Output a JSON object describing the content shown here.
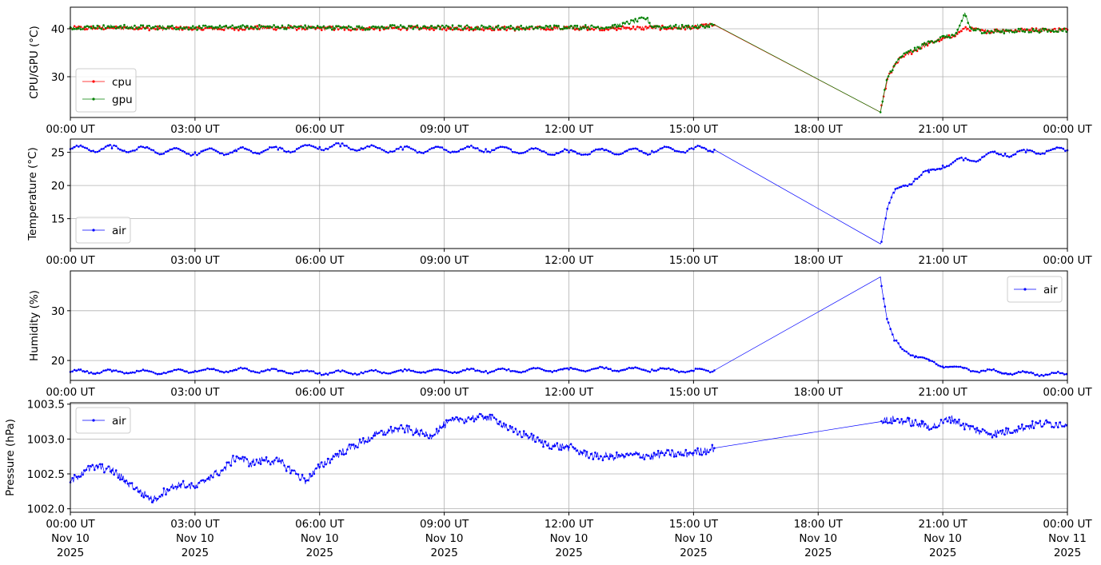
{
  "chart_data": [
    {
      "type": "line",
      "ylabel": "CPU/GPU (°C)",
      "xlim": [
        "2025-11-10 00:00",
        "2025-11-11 00:00"
      ],
      "ylim": [
        21.5,
        44.5
      ],
      "yticks": [
        30,
        40
      ],
      "grid": true,
      "legend_position": "lower-left",
      "series": [
        {
          "name": "cpu",
          "color": "#ff0000",
          "points": [
            [
              "2025-11-10 00:00",
              40.1
            ],
            [
              "2025-11-10 01:00",
              40.2
            ],
            [
              "2025-11-10 02:00",
              40.1
            ],
            [
              "2025-11-10 03:00",
              40.0
            ],
            [
              "2025-11-10 04:00",
              40.1
            ],
            [
              "2025-11-10 05:00",
              40.2
            ],
            [
              "2025-11-10 06:00",
              40.1
            ],
            [
              "2025-11-10 07:00",
              40.0
            ],
            [
              "2025-11-10 08:00",
              40.2
            ],
            [
              "2025-11-10 09:00",
              40.1
            ],
            [
              "2025-11-10 10:00",
              40.1
            ],
            [
              "2025-11-10 11:00",
              40.0
            ],
            [
              "2025-11-10 12:00",
              40.2
            ],
            [
              "2025-11-10 13:00",
              40.1
            ],
            [
              "2025-11-10 14:00",
              40.2
            ],
            [
              "2025-11-10 15:00",
              40.2
            ],
            [
              "2025-11-10 15:30",
              40.8
            ],
            [
              "2025-11-10 19:30",
              22.6
            ],
            [
              "2025-11-10 19:40",
              29.5
            ],
            [
              "2025-11-10 19:50",
              32.0
            ],
            [
              "2025-11-10 20:00",
              34.0
            ],
            [
              "2025-11-10 20:20",
              35.5
            ],
            [
              "2025-11-10 20:40",
              37.0
            ],
            [
              "2025-11-10 21:00",
              38.0
            ],
            [
              "2025-11-10 21:15",
              38.5
            ],
            [
              "2025-11-10 21:30",
              40.0
            ],
            [
              "2025-11-10 22:00",
              39.5
            ],
            [
              "2025-11-10 22:30",
              39.6
            ],
            [
              "2025-11-10 23:00",
              39.7
            ],
            [
              "2025-11-10 23:30",
              39.8
            ],
            [
              "2025-11-11 00:00",
              39.8
            ]
          ]
        },
        {
          "name": "gpu",
          "color": "#008000",
          "points": [
            [
              "2025-11-10 00:00",
              40.3
            ],
            [
              "2025-11-10 01:00",
              40.4
            ],
            [
              "2025-11-10 02:00",
              40.3
            ],
            [
              "2025-11-10 03:00",
              40.2
            ],
            [
              "2025-11-10 04:00",
              40.3
            ],
            [
              "2025-11-10 05:00",
              40.4
            ],
            [
              "2025-11-10 06:00",
              40.3
            ],
            [
              "2025-11-10 07:00",
              40.2
            ],
            [
              "2025-11-10 08:00",
              40.4
            ],
            [
              "2025-11-10 09:00",
              40.3
            ],
            [
              "2025-11-10 10:00",
              40.3
            ],
            [
              "2025-11-10 11:00",
              40.2
            ],
            [
              "2025-11-10 12:00",
              40.4
            ],
            [
              "2025-11-10 13:00",
              40.3
            ],
            [
              "2025-11-10 13:52",
              42.2
            ],
            [
              "2025-11-10 14:00",
              40.4
            ],
            [
              "2025-11-10 15:00",
              40.4
            ],
            [
              "2025-11-10 15:30",
              40.9
            ],
            [
              "2025-11-10 19:30",
              22.6
            ],
            [
              "2025-11-10 19:40",
              29.8
            ],
            [
              "2025-11-10 19:50",
              32.3
            ],
            [
              "2025-11-10 20:00",
              34.3
            ],
            [
              "2025-11-10 20:20",
              35.7
            ],
            [
              "2025-11-10 20:40",
              37.2
            ],
            [
              "2025-11-10 21:00",
              38.2
            ],
            [
              "2025-11-10 21:20",
              38.8
            ],
            [
              "2025-11-10 21:32",
              43.3
            ],
            [
              "2025-11-10 21:40",
              40.0
            ],
            [
              "2025-11-10 22:00",
              39.4
            ],
            [
              "2025-11-10 22:30",
              39.5
            ],
            [
              "2025-11-10 23:00",
              39.6
            ],
            [
              "2025-11-10 23:30",
              39.7
            ],
            [
              "2025-11-11 00:00",
              39.7
            ]
          ]
        }
      ]
    },
    {
      "type": "line",
      "ylabel": "Temperature (°C)",
      "xlim": [
        "2025-11-10 00:00",
        "2025-11-11 00:00"
      ],
      "ylim": [
        10.5,
        27.0
      ],
      "yticks": [
        15,
        20,
        25
      ],
      "grid": true,
      "legend_position": "lower-left",
      "series": [
        {
          "name": "air",
          "color": "#0000ff",
          "points": [
            [
              "2025-11-10 00:00",
              25.5
            ],
            [
              "2025-11-10 01:00",
              25.6
            ],
            [
              "2025-11-10 02:00",
              25.3
            ],
            [
              "2025-11-10 03:00",
              25.0
            ],
            [
              "2025-11-10 04:00",
              25.2
            ],
            [
              "2025-11-10 05:00",
              25.4
            ],
            [
              "2025-11-10 06:00",
              25.8
            ],
            [
              "2025-11-10 06:30",
              25.9
            ],
            [
              "2025-11-10 07:00",
              25.6
            ],
            [
              "2025-11-10 08:00",
              25.4
            ],
            [
              "2025-11-10 09:00",
              25.4
            ],
            [
              "2025-11-10 10:00",
              25.5
            ],
            [
              "2025-11-10 11:00",
              25.2
            ],
            [
              "2025-11-10 12:00",
              25.0
            ],
            [
              "2025-11-10 13:00",
              25.1
            ],
            [
              "2025-11-10 14:00",
              25.2
            ],
            [
              "2025-11-10 15:00",
              25.5
            ],
            [
              "2025-11-10 15:30",
              25.4
            ],
            [
              "2025-11-10 19:30",
              11.2
            ],
            [
              "2025-11-10 19:40",
              16.5
            ],
            [
              "2025-11-10 19:50",
              18.8
            ],
            [
              "2025-11-10 20:00",
              19.8
            ],
            [
              "2025-11-10 20:20",
              21.0
            ],
            [
              "2025-11-10 20:40",
              22.0
            ],
            [
              "2025-11-10 21:00",
              23.0
            ],
            [
              "2025-11-10 21:30",
              23.8
            ],
            [
              "2025-11-10 22:00",
              24.4
            ],
            [
              "2025-11-10 22:30",
              24.8
            ],
            [
              "2025-11-10 23:00",
              25.0
            ],
            [
              "2025-11-10 23:30",
              25.2
            ],
            [
              "2025-11-11 00:00",
              25.3
            ]
          ]
        }
      ]
    },
    {
      "type": "line",
      "ylabel": "Humidity (%)",
      "xlim": [
        "2025-11-10 00:00",
        "2025-11-11 00:00"
      ],
      "ylim": [
        16.0,
        38.0
      ],
      "yticks": [
        20,
        30
      ],
      "grid": true,
      "legend_position": "upper-right",
      "series": [
        {
          "name": "air",
          "color": "#0000ff",
          "points": [
            [
              "2025-11-10 00:00",
              17.7
            ],
            [
              "2025-11-10 01:00",
              17.8
            ],
            [
              "2025-11-10 02:00",
              17.6
            ],
            [
              "2025-11-10 03:00",
              17.9
            ],
            [
              "2025-11-10 04:00",
              18.1
            ],
            [
              "2025-11-10 05:00",
              17.9
            ],
            [
              "2025-11-10 06:00",
              17.5
            ],
            [
              "2025-11-10 07:00",
              17.6
            ],
            [
              "2025-11-10 08:00",
              17.8
            ],
            [
              "2025-11-10 09:00",
              17.9
            ],
            [
              "2025-11-10 10:00",
              17.9
            ],
            [
              "2025-11-10 11:00",
              18.0
            ],
            [
              "2025-11-10 12:00",
              18.2
            ],
            [
              "2025-11-10 13:00",
              18.3
            ],
            [
              "2025-11-10 14:00",
              18.2
            ],
            [
              "2025-11-10 15:00",
              17.9
            ],
            [
              "2025-11-10 15:30",
              18.0
            ],
            [
              "2025-11-10 19:30",
              36.8
            ],
            [
              "2025-11-10 19:35",
              32.0
            ],
            [
              "2025-11-10 19:40",
              28.0
            ],
            [
              "2025-11-10 19:50",
              24.0
            ],
            [
              "2025-11-10 20:00",
              22.5
            ],
            [
              "2025-11-10 20:20",
              21.0
            ],
            [
              "2025-11-10 20:40",
              19.8
            ],
            [
              "2025-11-10 21:00",
              19.0
            ],
            [
              "2025-11-10 21:30",
              18.3
            ],
            [
              "2025-11-10 22:00",
              17.9
            ],
            [
              "2025-11-10 22:30",
              17.6
            ],
            [
              "2025-11-10 23:00",
              17.4
            ],
            [
              "2025-11-10 23:30",
              17.3
            ],
            [
              "2025-11-11 00:00",
              17.2
            ]
          ]
        }
      ]
    },
    {
      "type": "line",
      "ylabel": "Pressure (hPa)",
      "xlim": [
        "2025-11-10 00:00",
        "2025-11-11 00:00"
      ],
      "ylim": [
        1001.95,
        1003.52
      ],
      "yticks": [
        1002.0,
        1002.5,
        1003.0,
        1003.5
      ],
      "grid": true,
      "legend_position": "upper-left",
      "series": [
        {
          "name": "air",
          "color": "#0000ff",
          "points": [
            [
              "2025-11-10 00:00",
              1002.38
            ],
            [
              "2025-11-10 00:20",
              1002.55
            ],
            [
              "2025-11-10 00:40",
              1002.6
            ],
            [
              "2025-11-10 01:00",
              1002.55
            ],
            [
              "2025-11-10 01:20",
              1002.4
            ],
            [
              "2025-11-10 01:40",
              1002.25
            ],
            [
              "2025-11-10 02:00",
              1002.12
            ],
            [
              "2025-11-10 02:20",
              1002.28
            ],
            [
              "2025-11-10 02:40",
              1002.35
            ],
            [
              "2025-11-10 03:00",
              1002.3
            ],
            [
              "2025-11-10 03:20",
              1002.45
            ],
            [
              "2025-11-10 03:40",
              1002.55
            ],
            [
              "2025-11-10 04:00",
              1002.75
            ],
            [
              "2025-11-10 04:20",
              1002.65
            ],
            [
              "2025-11-10 04:40",
              1002.7
            ],
            [
              "2025-11-10 05:00",
              1002.68
            ],
            [
              "2025-11-10 05:20",
              1002.55
            ],
            [
              "2025-11-10 05:40",
              1002.4
            ],
            [
              "2025-11-10 06:00",
              1002.6
            ],
            [
              "2025-11-10 06:20",
              1002.75
            ],
            [
              "2025-11-10 06:40",
              1002.85
            ],
            [
              "2025-11-10 07:00",
              1002.95
            ],
            [
              "2025-11-10 07:20",
              1003.05
            ],
            [
              "2025-11-10 07:40",
              1003.12
            ],
            [
              "2025-11-10 08:00",
              1003.15
            ],
            [
              "2025-11-10 08:20",
              1003.1
            ],
            [
              "2025-11-10 08:40",
              1003.05
            ],
            [
              "2025-11-10 09:00",
              1003.2
            ],
            [
              "2025-11-10 09:20",
              1003.28
            ],
            [
              "2025-11-10 09:40",
              1003.3
            ],
            [
              "2025-11-10 10:00",
              1003.32
            ],
            [
              "2025-11-10 10:20",
              1003.25
            ],
            [
              "2025-11-10 10:40",
              1003.1
            ],
            [
              "2025-11-10 11:00",
              1003.05
            ],
            [
              "2025-11-10 11:20",
              1002.95
            ],
            [
              "2025-11-10 11:40",
              1002.9
            ],
            [
              "2025-11-10 12:00",
              1002.88
            ],
            [
              "2025-11-10 12:20",
              1002.8
            ],
            [
              "2025-11-10 12:40",
              1002.75
            ],
            [
              "2025-11-10 13:00",
              1002.75
            ],
            [
              "2025-11-10 13:20",
              1002.75
            ],
            [
              "2025-11-10 13:40",
              1002.78
            ],
            [
              "2025-11-10 14:00",
              1002.75
            ],
            [
              "2025-11-10 14:20",
              1002.8
            ],
            [
              "2025-11-10 14:40",
              1002.78
            ],
            [
              "2025-11-10 15:00",
              1002.8
            ],
            [
              "2025-11-10 15:30",
              1002.87
            ],
            [
              "2025-11-10 19:30",
              1003.25
            ],
            [
              "2025-11-10 19:50",
              1003.28
            ],
            [
              "2025-11-10 20:10",
              1003.25
            ],
            [
              "2025-11-10 20:30",
              1003.2
            ],
            [
              "2025-11-10 20:50",
              1003.18
            ],
            [
              "2025-11-10 21:10",
              1003.3
            ],
            [
              "2025-11-10 21:30",
              1003.2
            ],
            [
              "2025-11-10 21:50",
              1003.12
            ],
            [
              "2025-11-10 22:10",
              1003.08
            ],
            [
              "2025-11-10 22:30",
              1003.1
            ],
            [
              "2025-11-10 22:50",
              1003.15
            ],
            [
              "2025-11-10 23:10",
              1003.2
            ],
            [
              "2025-11-10 23:30",
              1003.22
            ],
            [
              "2025-11-11 00:00",
              1003.22
            ]
          ]
        }
      ]
    }
  ],
  "x_ticks": {
    "hours": [
      "00:00 UT",
      "03:00 UT",
      "06:00 UT",
      "09:00 UT",
      "12:00 UT",
      "15:00 UT",
      "18:00 UT",
      "21:00 UT",
      "00:00 UT"
    ],
    "day_lines": [
      "Nov 10",
      "Nov 10",
      "Nov 10",
      "Nov 10",
      "Nov 10",
      "Nov 10",
      "Nov 10",
      "Nov 10",
      "Nov 11"
    ],
    "year_lines": [
      "2025",
      "2025",
      "2025",
      "2025",
      "2025",
      "2025",
      "2025",
      "2025",
      "2025"
    ]
  }
}
